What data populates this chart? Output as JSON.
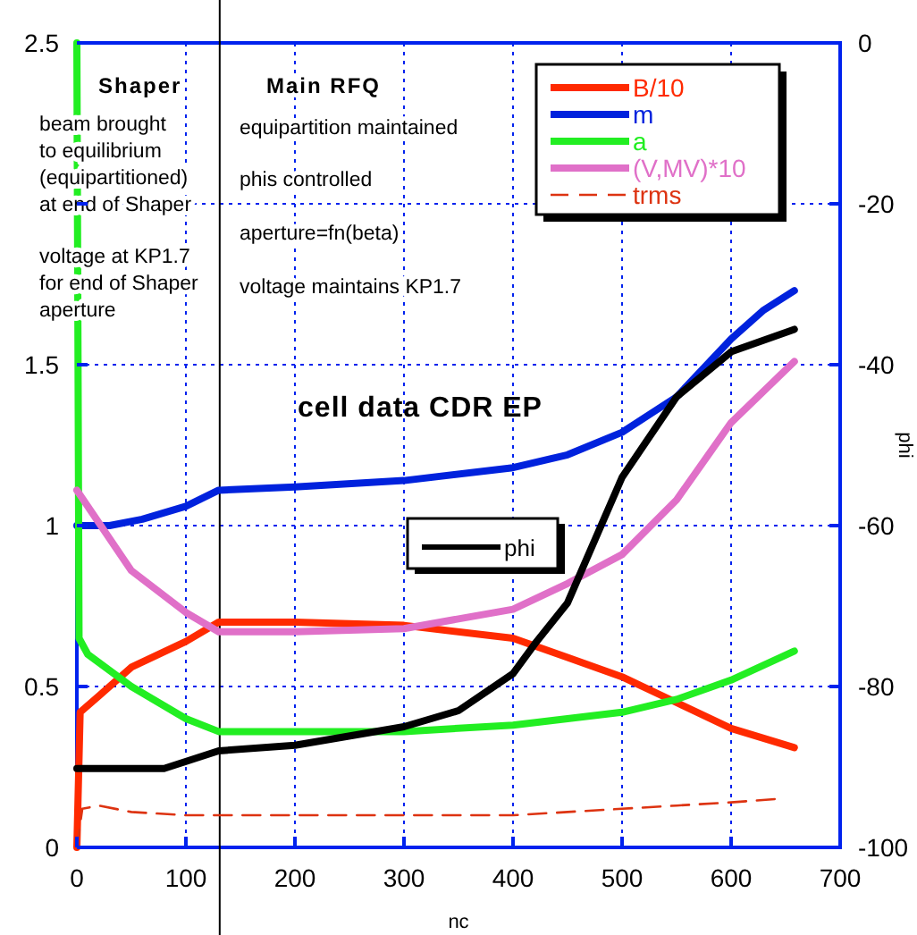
{
  "chart_data": {
    "type": "line",
    "title": "cell data CDR EP",
    "xlabel": "nc",
    "y2label": "phi",
    "xlim": [
      0,
      700
    ],
    "xticks": [
      0,
      100,
      200,
      300,
      400,
      500,
      600,
      700
    ],
    "ylim": [
      0,
      2.5
    ],
    "yticks": [
      0,
      0.5,
      1,
      1.5,
      {
        "value": 2,
        "label": null
      },
      2.5
    ],
    "y2lim": [
      -100,
      0
    ],
    "y2ticks": [
      -100,
      -80,
      -60,
      -40,
      -20,
      0
    ],
    "grid": true,
    "legend": "top right",
    "ref_lines": [
      {
        "axis": "x",
        "value": 131,
        "color": "#000000"
      }
    ],
    "annotations": [
      "Shaper",
      "beam brought\nto equilibrium\n(equipartitioned)\nat end of Shaper",
      "voltage at KP1.7\nfor end of Shaper\naperture",
      "Main  RFQ",
      "equipartition maintained",
      "phis controlled",
      "aperture=fn(beta)",
      "voltage maintains KP1.7"
    ],
    "series": [
      {
        "name": "B/10",
        "color": "#ff2a00",
        "x": [
          0,
          3,
          20,
          50,
          100,
          130,
          200,
          300,
          400,
          450,
          500,
          550,
          600,
          658
        ],
        "values": [
          0,
          0.42,
          0.47,
          0.56,
          0.64,
          0.7,
          0.7,
          0.69,
          0.65,
          0.59,
          0.53,
          0.45,
          0.37,
          0.31
        ]
      },
      {
        "name": "m",
        "color": "#0022dd",
        "x": [
          0,
          30,
          60,
          100,
          130,
          200,
          300,
          400,
          450,
          500,
          550,
          600,
          630,
          658
        ],
        "values": [
          1.0,
          1.0,
          1.02,
          1.06,
          1.11,
          1.12,
          1.14,
          1.18,
          1.22,
          1.29,
          1.4,
          1.58,
          1.67,
          1.73
        ]
      },
      {
        "name": "a",
        "color": "#22ee22",
        "x": [
          0,
          2,
          10,
          50,
          100,
          130,
          200,
          300,
          400,
          450,
          500,
          550,
          600,
          658
        ],
        "values": [
          2.5,
          0.65,
          0.6,
          0.5,
          0.4,
          0.36,
          0.36,
          0.36,
          0.38,
          0.4,
          0.42,
          0.46,
          0.52,
          0.61
        ]
      },
      {
        "name": "(V,MV)*10",
        "color": "#e070c8",
        "x": [
          0,
          50,
          100,
          130,
          200,
          300,
          400,
          450,
          500,
          550,
          600,
          658
        ],
        "values": [
          1.11,
          0.86,
          0.73,
          0.67,
          0.67,
          0.68,
          0.74,
          0.82,
          0.91,
          1.08,
          1.32,
          1.51
        ]
      },
      {
        "name": "trms",
        "color": "#dd3311",
        "line_style": "dashed",
        "x": [
          0,
          5,
          20,
          50,
          100,
          200,
          300,
          400,
          450,
          500,
          550,
          600,
          640
        ],
        "values": [
          0,
          0.12,
          0.13,
          0.11,
          0.1,
          0.1,
          0.1,
          0.1,
          0.11,
          0.12,
          0.13,
          0.14,
          0.15
        ]
      },
      {
        "name": "phi",
        "color": "#000000",
        "axis": "y2",
        "x": [
          0,
          80,
          130,
          200,
          300,
          350,
          400,
          420,
          450,
          500,
          550,
          600,
          658
        ],
        "values": [
          -90.2,
          -90.2,
          -88,
          -87.3,
          -85,
          -83,
          -78.4,
          -74.7,
          -69.6,
          -54,
          -44,
          -38.4,
          -35.6
        ]
      }
    ]
  }
}
